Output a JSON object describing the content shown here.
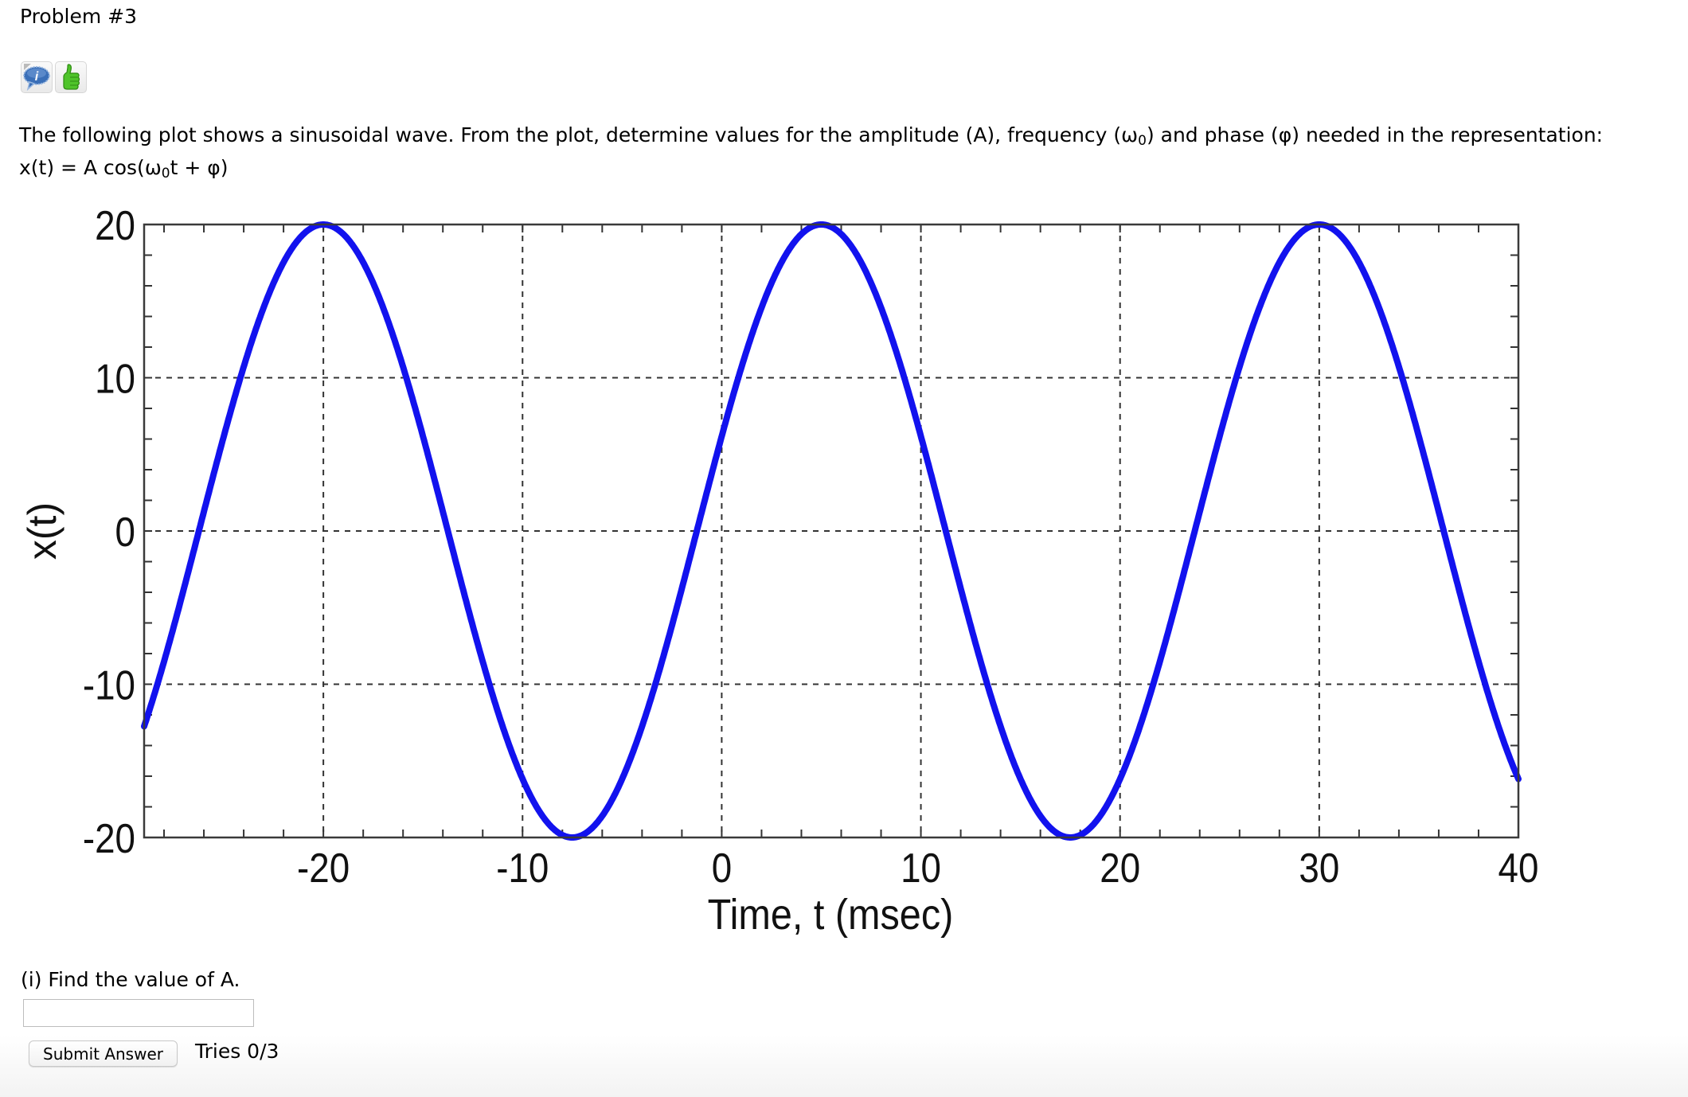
{
  "header": {
    "title": "Problem #3",
    "icons": [
      {
        "name": "info-speech-bubble-icon",
        "glyph": "i"
      },
      {
        "name": "thumbs-up-icon",
        "glyph": "👍"
      }
    ]
  },
  "question": {
    "intro_part1": "The following plot shows a sinusoidal wave. From the plot, determine values for the amplitude (A), frequency (ω",
    "intro_sub": "0",
    "intro_part2": ") and phase (φ) needed in the representation:",
    "formula_part1": "x(t) = A cos(ω",
    "formula_sub": "0",
    "formula_part2": "t + φ)"
  },
  "chart_data": {
    "type": "line",
    "title": "",
    "xlabel": "Time, t (msec)",
    "ylabel": "x(t)",
    "xlim": [
      -29,
      40
    ],
    "ylim": [
      -20,
      20
    ],
    "xticks": [
      -20,
      -10,
      0,
      10,
      20,
      30,
      40
    ],
    "xtick_labels": [
      "-20",
      "-10",
      "0",
      "10",
      "20",
      "30",
      "40"
    ],
    "yticks": [
      20,
      10,
      0,
      -10,
      -20
    ],
    "ytick_labels": [
      "20",
      "10",
      "0",
      "-10",
      "-20"
    ],
    "x_minor_step": 2,
    "y_minor_step": 2,
    "grid": "dashed at major ticks",
    "legend": null,
    "series": [
      {
        "name": "x(t)",
        "color": "#1212ee",
        "formula": "20*cos(2*pi*(t-5)/25)",
        "amplitude": 20,
        "period_ms": 25,
        "peaks_at_ms": [
          -20,
          5,
          30
        ],
        "troughs_at_ms": [
          -7.5,
          17.5
        ],
        "x": [
          -29,
          -27.5,
          -25,
          -22.5,
          -20,
          -17.5,
          -15,
          -12.5,
          -10,
          -7.5,
          -5,
          -2.5,
          0,
          2.5,
          5,
          7.5,
          10,
          12.5,
          15,
          17.5,
          20,
          22.5,
          25,
          27.5,
          30,
          32.5,
          35,
          37.5,
          40
        ],
        "values": [
          -12.7,
          -6.2,
          6.2,
          16.2,
          20,
          16.2,
          6.2,
          -6.2,
          -16.2,
          -20,
          -16.2,
          -6.2,
          6.2,
          16.2,
          20,
          16.2,
          6.2,
          -6.2,
          -16.2,
          -20,
          -16.2,
          -6.2,
          6.2,
          16.2,
          20,
          16.2,
          6.2,
          -6.2,
          -16.2
        ]
      }
    ]
  },
  "part_i": {
    "label": "(i) Find the value of A.",
    "input_value": "",
    "input_placeholder": "",
    "submit_label": "Submit Answer",
    "tries": "Tries 0/3"
  }
}
